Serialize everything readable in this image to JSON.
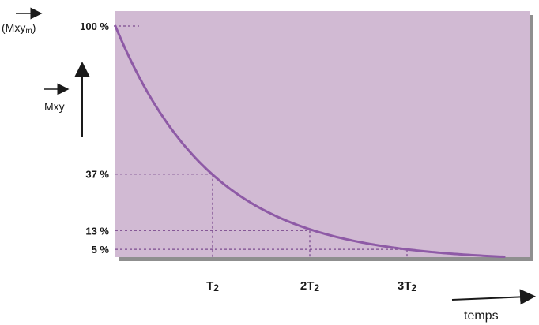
{
  "chart_data": {
    "type": "line",
    "title": "",
    "xlabel": "temps",
    "ylabel": "Mxy",
    "y_top_label_prefix": "(Mxym)",
    "y_top_label_parts": {
      "open": "(",
      "main": "Mxy",
      "sub": "m",
      "close": ")"
    },
    "ylim": [
      0,
      100
    ],
    "grid": false,
    "categories_x": [
      "T2",
      "2T2",
      "3T2"
    ],
    "x_tick_values": [
      1,
      2,
      3
    ],
    "x_tick_labels": [
      {
        "main": "T",
        "sub": "2"
      },
      {
        "prefix": "2",
        "main": "T",
        "sub": "2"
      },
      {
        "prefix": "3",
        "main": "T",
        "sub": "2"
      }
    ],
    "xlim": [
      0,
      4
    ],
    "y_markers": [
      {
        "value": 100,
        "label": "100 %"
      },
      {
        "value": 37,
        "label": "37 %"
      },
      {
        "value": 13,
        "label": "13 %"
      },
      {
        "value": 5,
        "label": "5 %"
      }
    ],
    "series": [
      {
        "x": [
          0,
          0.25,
          0.5,
          0.75,
          1,
          1.5,
          2,
          2.5,
          3,
          3.5,
          4
        ],
        "values": [
          100,
          78,
          61,
          47,
          37,
          22,
          13,
          8,
          5,
          3,
          2
        ]
      }
    ],
    "colors": {
      "plot_background": "#d1bad3",
      "curve": "#8e5aa6",
      "guides": "#7b4a8f",
      "shadow": "#6a6a6a"
    }
  }
}
